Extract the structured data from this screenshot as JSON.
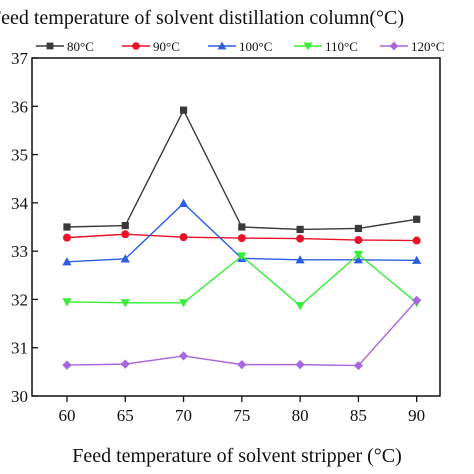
{
  "chart_data": {
    "type": "line",
    "ylabel": "Feed temperature of solvent distillation column(°C)",
    "xlabel": "Feed temperature of solvent stripper (°C)",
    "x": [
      60,
      65,
      70,
      75,
      80,
      85,
      90
    ],
    "x_ticks": [
      "60",
      "65",
      "70",
      "75",
      "80",
      "85",
      "90"
    ],
    "y_ticks": [
      "30",
      "31",
      "32",
      "33",
      "34",
      "35",
      "36",
      "37"
    ],
    "xlim": [
      57,
      92
    ],
    "ylim": [
      30,
      37
    ],
    "grid": false,
    "legend_position": "top",
    "series": [
      {
        "name": "80°C",
        "color": "#3a3a3a",
        "marker": "square",
        "values": [
          33.5,
          33.53,
          35.92,
          33.5,
          33.45,
          33.47,
          33.66
        ]
      },
      {
        "name": "90°C",
        "color": "#e8132b",
        "marker": "circle",
        "values": [
          33.28,
          33.35,
          33.29,
          33.27,
          33.26,
          33.23,
          33.22
        ]
      },
      {
        "name": "100°C",
        "color": "#2d5ee0",
        "marker": "triangle-up",
        "values": [
          32.78,
          32.84,
          33.99,
          32.85,
          32.82,
          32.82,
          32.81
        ]
      },
      {
        "name": "110°C",
        "color": "#35ee35",
        "marker": "triangle-down",
        "values": [
          31.95,
          31.93,
          31.93,
          32.9,
          31.87,
          32.93,
          31.93
        ]
      },
      {
        "name": "120°C",
        "color": "#aa66dd",
        "marker": "diamond",
        "values": [
          30.64,
          30.66,
          30.83,
          30.65,
          30.65,
          30.63,
          31.98
        ]
      }
    ]
  }
}
